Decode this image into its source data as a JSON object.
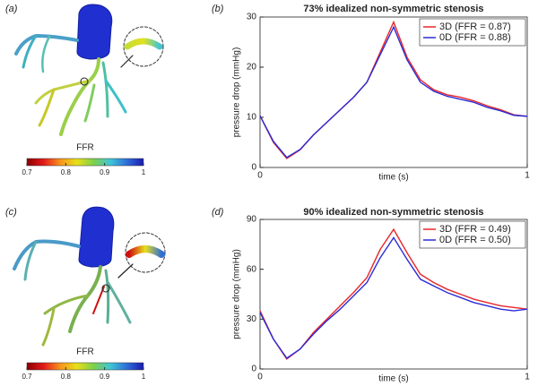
{
  "panel_labels": [
    "(a)",
    "(b)",
    "(c)",
    "(d)"
  ],
  "colorbars": [
    {
      "label": "FFR",
      "lim": [
        0.7,
        1
      ],
      "ticks": [
        0.7,
        0.8,
        0.9,
        1
      ],
      "colors": [
        "#8b0000",
        "#e31a1c",
        "#f7941d",
        "#e8e01a",
        "#7fd04a",
        "#3fc6d6",
        "#2f6fd8",
        "#1a1ab0"
      ]
    },
    {
      "label": "FFR",
      "lim": [
        0.7,
        1
      ],
      "ticks": [
        0.7,
        0.8,
        0.9,
        1
      ],
      "colors": [
        "#8b0000",
        "#e31a1c",
        "#f7941d",
        "#e8e01a",
        "#7fd04a",
        "#3fc6d6",
        "#2f6fd8",
        "#1a1ab0"
      ]
    }
  ],
  "chart_data": [
    {
      "type": "line",
      "title": "73% idealized non-symmetric stenosis",
      "x_label": "time (s)",
      "y_label": "pressure drop (mmHg)",
      "x": [
        0,
        0.05,
        0.1,
        0.15,
        0.2,
        0.25,
        0.3,
        0.35,
        0.4,
        0.45,
        0.5,
        0.55,
        0.6,
        0.65,
        0.7,
        0.75,
        0.8,
        0.85,
        0.9,
        0.95,
        1
      ],
      "series": [
        {
          "name": "3D (FFR = 0.87)",
          "color": "#e8262a",
          "values": [
            10.3,
            5,
            1.8,
            3.5,
            6.5,
            9,
            11.5,
            14,
            17,
            23,
            29,
            22,
            17.5,
            15.5,
            14.5,
            14,
            13.3,
            12.3,
            11.5,
            10.5,
            10.2
          ]
        },
        {
          "name": "0D (FFR = 0.88)",
          "color": "#2b2bd6",
          "values": [
            10.3,
            5.2,
            2.0,
            3.6,
            6.5,
            9,
            11.5,
            14,
            17,
            22.5,
            28,
            21.5,
            17,
            15.2,
            14.2,
            13.6,
            13,
            12,
            11.3,
            10.4,
            10.2
          ]
        }
      ],
      "xlim": [
        0,
        1
      ],
      "xticks": [
        0,
        1
      ],
      "ylim": [
        0,
        30
      ],
      "yticks": [
        0,
        10,
        20,
        30
      ],
      "legend": "upper right"
    },
    {
      "type": "line",
      "title": "90% idealized non-symmetric stenosis",
      "x_label": "time (s)",
      "y_label": "pressure drop (mmHg)",
      "x": [
        0,
        0.05,
        0.1,
        0.15,
        0.2,
        0.25,
        0.3,
        0.35,
        0.4,
        0.45,
        0.5,
        0.55,
        0.6,
        0.65,
        0.7,
        0.75,
        0.8,
        0.85,
        0.9,
        0.95,
        1
      ],
      "series": [
        {
          "name": "3D (FFR = 0.49)",
          "color": "#e8262a",
          "values": [
            35,
            18,
            6,
            12,
            22,
            30,
            38,
            46,
            55,
            72,
            84,
            70,
            57,
            52,
            48,
            45,
            42,
            40,
            38,
            37,
            36
          ]
        },
        {
          "name": "0D (FFR = 0.50)",
          "color": "#2b2bd6",
          "values": [
            34,
            18,
            6.5,
            12,
            21,
            29,
            36,
            44,
            52,
            67,
            79,
            66,
            54,
            50,
            46,
            43,
            40,
            38,
            36,
            35,
            36
          ]
        }
      ],
      "xlim": [
        0,
        1
      ],
      "xticks": [
        0,
        1
      ],
      "ylim": [
        0,
        90
      ],
      "yticks": [
        0,
        30,
        60,
        90
      ],
      "legend": "upper right"
    }
  ]
}
